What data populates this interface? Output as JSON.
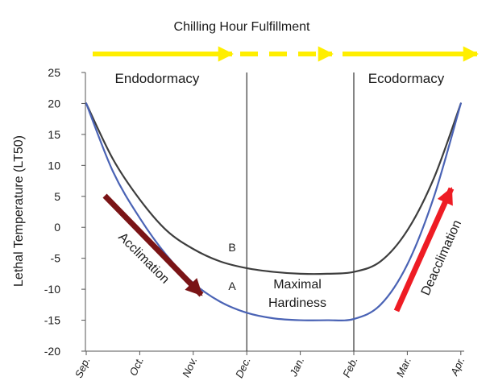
{
  "chart_data": {
    "type": "line",
    "title": "Chilling Hour Fulfillment",
    "xlabel": "",
    "ylabel": "Lethal Temperature (LT50)",
    "ylim": [
      -20,
      25
    ],
    "yticks": [
      25,
      20,
      15,
      10,
      5,
      0,
      -5,
      -10,
      -15,
      -20
    ],
    "categories": [
      "Sep.",
      "Oct.",
      "Nov.",
      "Dec.",
      "Jan.",
      "Feb.",
      "Mar.",
      "Apr."
    ],
    "series": [
      {
        "name": "B",
        "color": "#3d3d3d",
        "x": [
          0,
          0.5,
          1,
          1.5,
          2,
          2.5,
          3,
          3.5,
          4,
          4.5,
          5,
          5.5,
          6,
          6.5,
          7
        ],
        "values": [
          20,
          11,
          4.5,
          -0.5,
          -3.5,
          -5.5,
          -6.6,
          -7.2,
          -7.5,
          -7.5,
          -7.2,
          -5.5,
          -0.5,
          8,
          20
        ]
      },
      {
        "name": "A",
        "color": "#4a63b5",
        "x": [
          0,
          0.5,
          1,
          1.5,
          2,
          2.5,
          3,
          3.5,
          4,
          4.5,
          5,
          5.5,
          6,
          6.5,
          7
        ],
        "values": [
          20,
          9,
          1.5,
          -4.5,
          -9,
          -12,
          -13.8,
          -14.7,
          -15,
          -15,
          -14.8,
          -12.5,
          -6,
          5,
          20
        ]
      }
    ],
    "vertical_lines_at": [
      "Dec.",
      "Feb."
    ],
    "grid": false,
    "annotations": {
      "endodormacy": "Endodormacy",
      "ecodormacy": "Ecodormacy",
      "acclimation": "Acclimation",
      "deacclimation": "Deacclimation",
      "maximal": "Maximal",
      "hardiness": "Hardiness",
      "label_b": "B",
      "label_a": "A"
    },
    "colors": {
      "arrow_top": "#ffee00",
      "acclimation_arrow": "#7a1416",
      "deacclimation_arrow": "#ee1c24",
      "axis": "#555555",
      "vline": "#333333"
    }
  }
}
